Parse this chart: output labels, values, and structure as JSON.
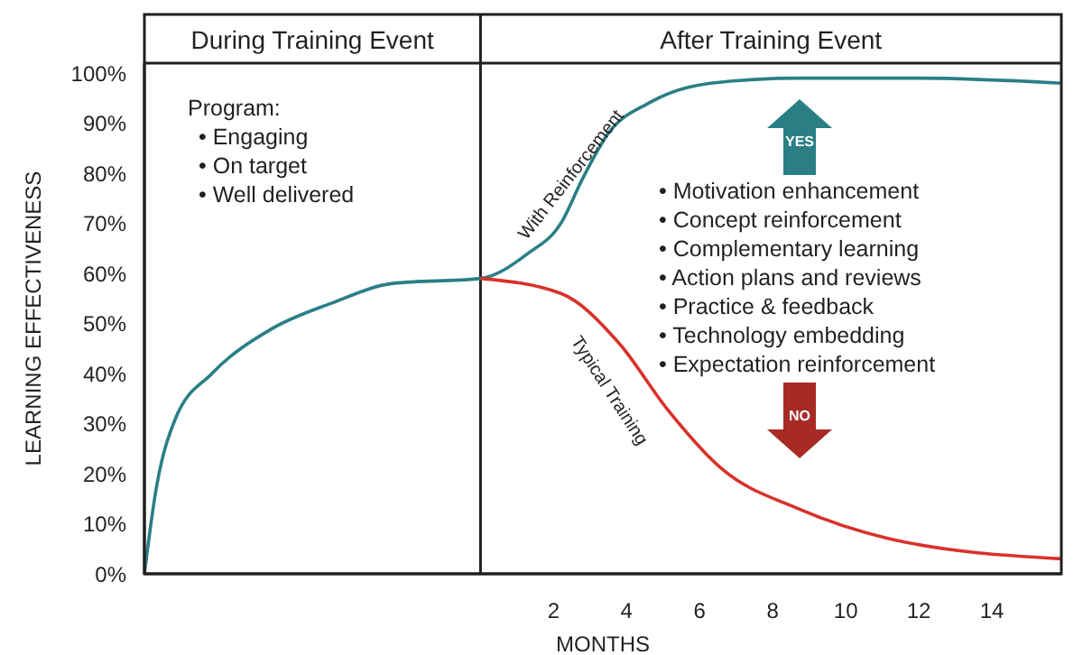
{
  "chart_data": {
    "type": "line",
    "xlabel": "MONTHS",
    "ylabel": "LEARNING EFFECTIVENESS",
    "xlim": [
      -9.2,
      15.9
    ],
    "xticks": [
      2,
      4,
      6,
      8,
      10,
      12,
      14
    ],
    "ylim": [
      0,
      102
    ],
    "yticks": [
      {
        "value": 0,
        "label": "0%"
      },
      {
        "value": 10,
        "label": "10%"
      },
      {
        "value": 20,
        "label": "20%"
      },
      {
        "value": 30,
        "label": "30%"
      },
      {
        "value": 40,
        "label": "40%"
      },
      {
        "value": 50,
        "label": "50%"
      },
      {
        "value": 60,
        "label": "60%"
      },
      {
        "value": 70,
        "label": "70%"
      },
      {
        "value": 80,
        "label": "80%"
      },
      {
        "value": 90,
        "label": "90%"
      },
      {
        "value": 100,
        "label": "100%"
      }
    ],
    "series": [
      {
        "name": "With Reinforcement",
        "color": "#2a7f85",
        "x": [
          -9.2,
          -8.9,
          -8.35,
          -7.35,
          -5.7,
          -4.1,
          -2.4,
          0,
          1.3,
          2.2,
          2.8,
          3.5,
          4.6,
          6.3,
          8.7,
          12,
          15.9
        ],
        "values": [
          0,
          16,
          31,
          40,
          49,
          54,
          58,
          59,
          64,
          70,
          79,
          88,
          94,
          98,
          99,
          99,
          98
        ]
      },
      {
        "name": "Typical Training",
        "color": "#d9312b",
        "x": [
          0,
          2.2,
          3.8,
          5.1,
          6.6,
          8.7,
          11.2,
          15.9
        ],
        "values": [
          59,
          56,
          46,
          33,
          21,
          13,
          7,
          3
        ]
      }
    ],
    "ref_lines": [
      {
        "axis": "x",
        "value": 0,
        "color": "#231f20"
      }
    ],
    "annotations": [
      "During Training Event",
      "After Training Event",
      "Program:",
      "• Engaging",
      "• On target",
      "• Well delivered",
      "• Motivation enhancement",
      "• Concept reinforcement",
      "• Complementary learning",
      "• Action plans and reviews",
      "• Practice & feedback",
      "• Technology embedding",
      "• Expectation reinforcement",
      "YES",
      "NO"
    ],
    "marker": "none",
    "line_style": "solid"
  }
}
